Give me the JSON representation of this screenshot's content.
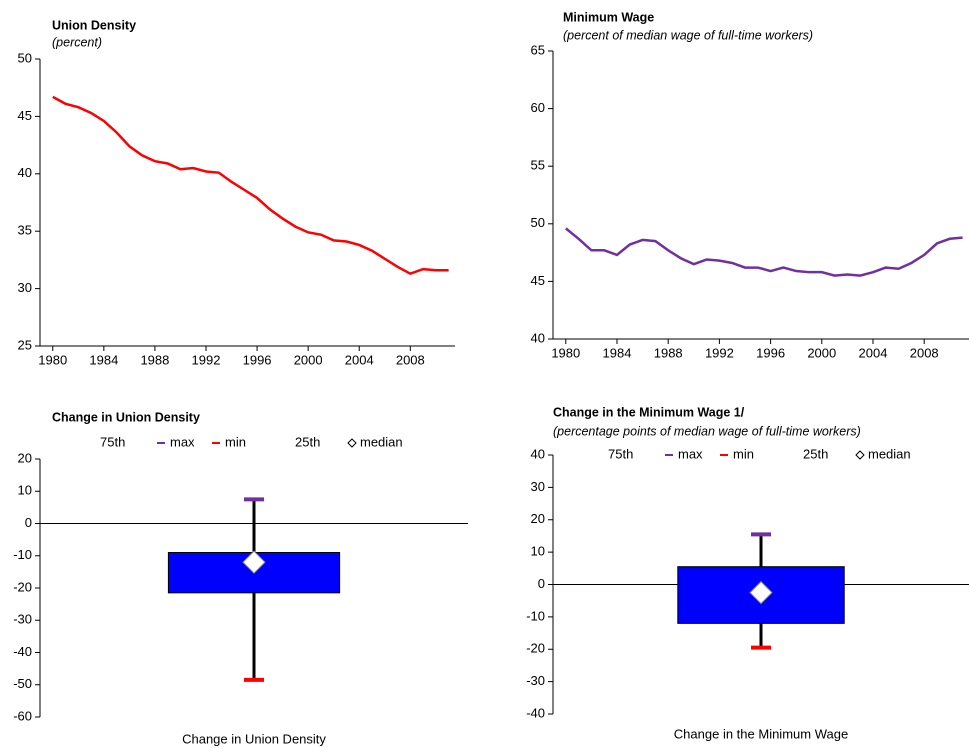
{
  "chart_data": [
    {
      "type": "line",
      "title": "Union Density",
      "subtitle": "(percent)",
      "x": [
        1980,
        1981,
        1982,
        1983,
        1984,
        1985,
        1986,
        1987,
        1988,
        1989,
        1990,
        1991,
        1992,
        1993,
        1994,
        1995,
        1996,
        1997,
        1998,
        1999,
        2000,
        2001,
        2002,
        2003,
        2004,
        2005,
        2006,
        2007,
        2008,
        2009,
        2010,
        2011
      ],
      "series": [
        {
          "color": "#ff0000",
          "values": [
            46.7,
            46.1,
            45.8,
            45.3,
            44.6,
            43.6,
            42.4,
            41.6,
            41.1,
            40.9,
            40.4,
            40.5,
            40.2,
            40.1,
            39.3,
            38.6,
            37.9,
            36.9,
            36.1,
            35.4,
            34.9,
            34.7,
            34.2,
            34.1,
            33.8,
            33.3,
            32.6,
            31.9,
            31.3,
            31.7,
            31.6,
            31.6
          ]
        }
      ],
      "xlim": [
        1979,
        2011.5
      ],
      "xticks": [
        1980,
        1984,
        1988,
        1992,
        1996,
        2000,
        2004,
        2008
      ],
      "ylim": [
        25,
        50
      ],
      "yticks": [
        25,
        30,
        35,
        40,
        45,
        50
      ]
    },
    {
      "type": "line",
      "title": "Minimum Wage",
      "subtitle": "(percent of median wage of full-time workers)",
      "x": [
        1980,
        1981,
        1982,
        1983,
        1984,
        1985,
        1986,
        1987,
        1988,
        1989,
        1990,
        1991,
        1992,
        1993,
        1994,
        1995,
        1996,
        1997,
        1998,
        1999,
        2000,
        2001,
        2002,
        2003,
        2004,
        2005,
        2006,
        2007,
        2008,
        2009,
        2010,
        2011
      ],
      "series": [
        {
          "color": "#7030a0",
          "values": [
            49.6,
            48.7,
            47.7,
            47.7,
            47.3,
            48.2,
            48.6,
            48.5,
            47.7,
            47.0,
            46.5,
            46.9,
            46.8,
            46.6,
            46.2,
            46.2,
            45.9,
            46.2,
            45.9,
            45.8,
            45.8,
            45.5,
            45.6,
            45.5,
            45.8,
            46.2,
            46.1,
            46.6,
            47.3,
            48.3,
            48.7,
            48.8
          ]
        }
      ],
      "xlim": [
        1979,
        2011.5
      ],
      "xticks": [
        1980,
        1984,
        1988,
        1992,
        1996,
        2000,
        2004,
        2008
      ],
      "ylim": [
        40,
        65
      ],
      "yticks": [
        40,
        45,
        50,
        55,
        60,
        65
      ]
    },
    {
      "type": "box",
      "title": "Change in Union Density",
      "categories": [
        "Change in Union Density"
      ],
      "box_color": "#0000ff",
      "series": [
        {
          "name": "75th",
          "values": [
            -9
          ]
        },
        {
          "name": "max",
          "color": "#7030a0",
          "values": [
            7.5
          ]
        },
        {
          "name": "min",
          "color": "#ff0000",
          "values": [
            -48.5
          ]
        },
        {
          "name": "25th",
          "values": [
            -21.5
          ]
        },
        {
          "name": "median",
          "color": "#ffffff",
          "values": [
            -12
          ]
        }
      ],
      "ylim": [
        -60,
        20
      ],
      "yticks": [
        -60,
        -50,
        -40,
        -30,
        -20,
        -10,
        0,
        10,
        20
      ]
    },
    {
      "type": "box",
      "title": "Change in the Minimum Wage 1/",
      "subtitle": "(percentage points of median wage of full-time workers)",
      "categories": [
        "Change in the Minimum Wage"
      ],
      "box_color": "#0000ff",
      "series": [
        {
          "name": "75th",
          "values": [
            5.5
          ]
        },
        {
          "name": "max",
          "color": "#7030a0",
          "values": [
            15.5
          ]
        },
        {
          "name": "min",
          "color": "#ff0000",
          "values": [
            -19.5
          ]
        },
        {
          "name": "25th",
          "values": [
            -12
          ]
        },
        {
          "name": "median",
          "color": "#ffffff",
          "values": [
            -2.5
          ]
        }
      ],
      "ylim": [
        -40,
        40
      ],
      "yticks": [
        -40,
        -30,
        -20,
        -10,
        0,
        10,
        20,
        30,
        40
      ]
    }
  ]
}
